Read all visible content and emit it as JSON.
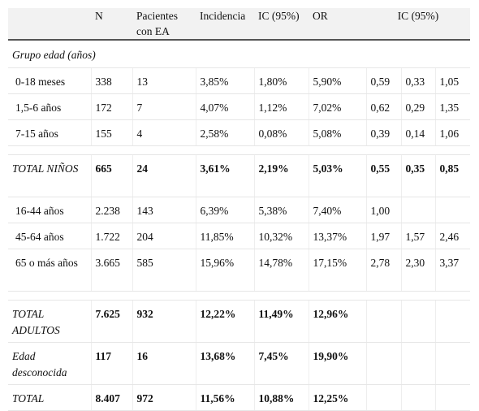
{
  "header": {
    "cols": [
      "N",
      "Pacientes con EA",
      "Incidencia",
      "IC (95%)",
      "OR",
      "IC (95%)"
    ]
  },
  "group_label": "Grupo edad (años)",
  "rows": [
    [
      "0-18 meses",
      "338",
      "13",
      "3,85%",
      "1,80%",
      "5,90%",
      "0,59",
      "0,33",
      "1,05"
    ],
    [
      "1,5-6 años",
      "172",
      "7",
      "4,07%",
      "1,12%",
      "7,02%",
      "0,62",
      "0,29",
      "1,35"
    ],
    [
      "7-15 años",
      "155",
      "4",
      "2,58%",
      "0,08%",
      "5,08%",
      "0,39",
      "0,14",
      "1,06"
    ],
    [
      "TOTAL NIÑOS",
      "665",
      "24",
      "3,61%",
      "2,19%",
      "5,03%",
      "0,55",
      "0,35",
      "0,85"
    ],
    [
      "16-44 años",
      "2.238",
      "143",
      "6,39%",
      "5,38%",
      "7,40%",
      "1,00",
      null,
      null
    ],
    [
      "45-64 años",
      "1.722",
      "204",
      "11,85%",
      "10,32%",
      "13,37%",
      "1,97",
      "1,57",
      "2,46"
    ],
    [
      "65 o más años",
      "3.665",
      "585",
      "15,96%",
      "14,78%",
      "17,15%",
      "2,78",
      "2,30",
      "3,37"
    ],
    [
      "TOTAL ADULTOS",
      "7.625",
      "932",
      "12,22%",
      "11,49%",
      "12,96%",
      null,
      null,
      null
    ],
    [
      "Edad desconocida",
      "117",
      "16",
      "13,68%",
      "7,45%",
      "19,90%",
      null,
      null,
      null
    ],
    [
      "TOTAL",
      "8.407",
      "972",
      "11,56%",
      "10,88%",
      "12,25%",
      null,
      null,
      null
    ]
  ]
}
